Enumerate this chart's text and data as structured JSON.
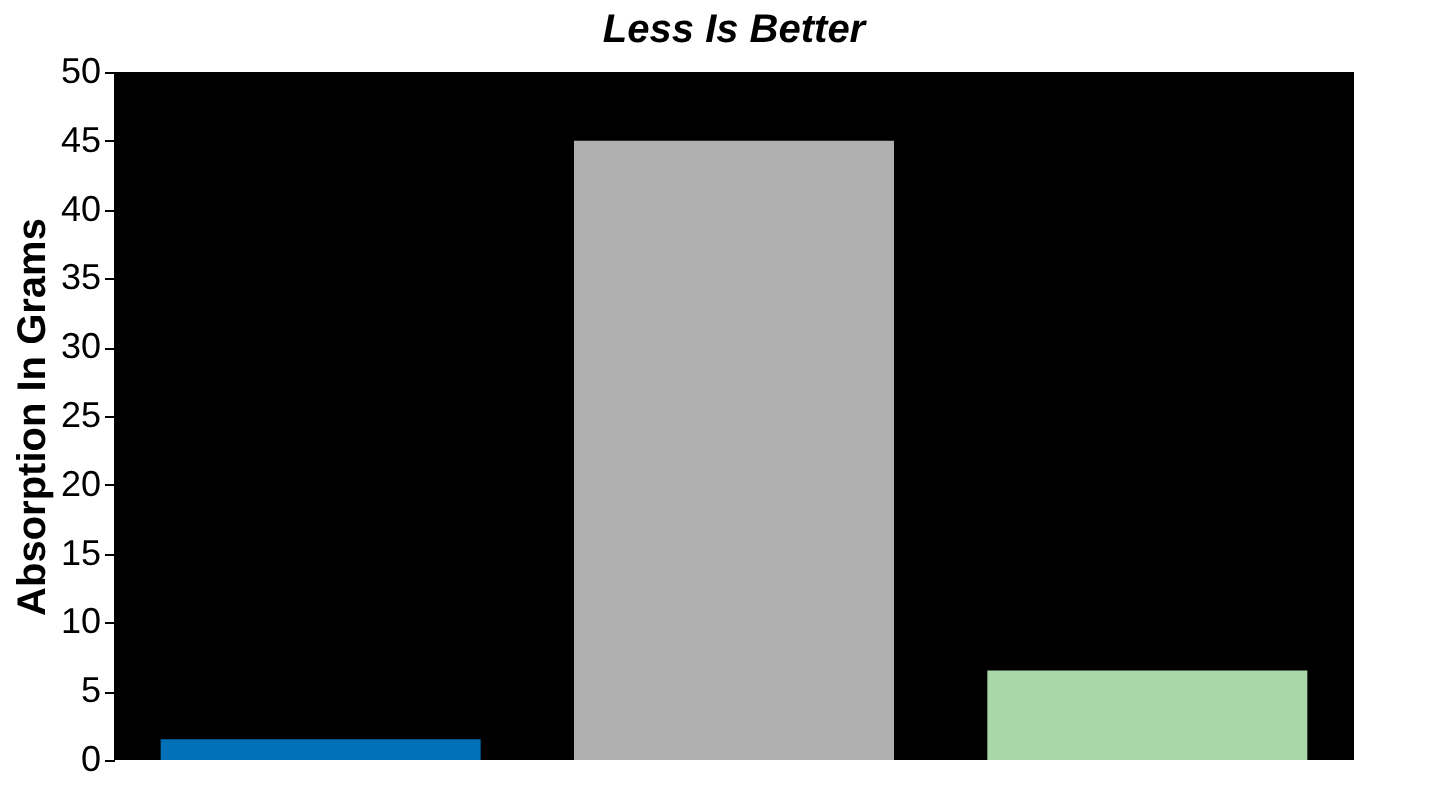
{
  "chart_data": {
    "type": "bar",
    "title": "Less Is Better",
    "ylabel": "Absorption In Grams",
    "categories": [
      null,
      null,
      null
    ],
    "values": [
      1.5,
      45,
      6.5
    ],
    "colors": [
      "#0070b8",
      "#b0b0b0",
      "#a8d8a8"
    ],
    "ylim": [
      0,
      50
    ],
    "yticks": [
      0,
      5,
      10,
      15,
      20,
      25,
      30,
      35,
      40,
      45,
      50
    ],
    "grid": false
  }
}
